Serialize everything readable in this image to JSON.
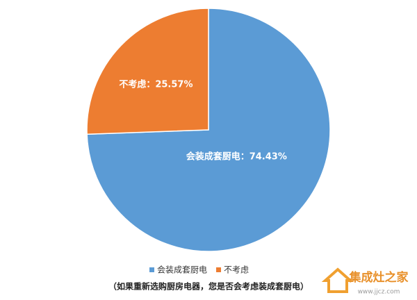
{
  "chart_data": {
    "type": "pie",
    "categories": [
      "会装成套厨电",
      "不考虑"
    ],
    "values": [
      74.43,
      25.57
    ],
    "value_labels": [
      "会装成套厨电：74.43%",
      "不考虑：25.57%"
    ],
    "colors": [
      "#5b9bd5",
      "#ed7d31"
    ],
    "legend": "bottom",
    "caption": "（如果重新选购厨房电器，您是否会考虑装成套厨电）"
  },
  "watermark": {
    "title": "集成灶之家",
    "url": "www.jjcz.com"
  }
}
